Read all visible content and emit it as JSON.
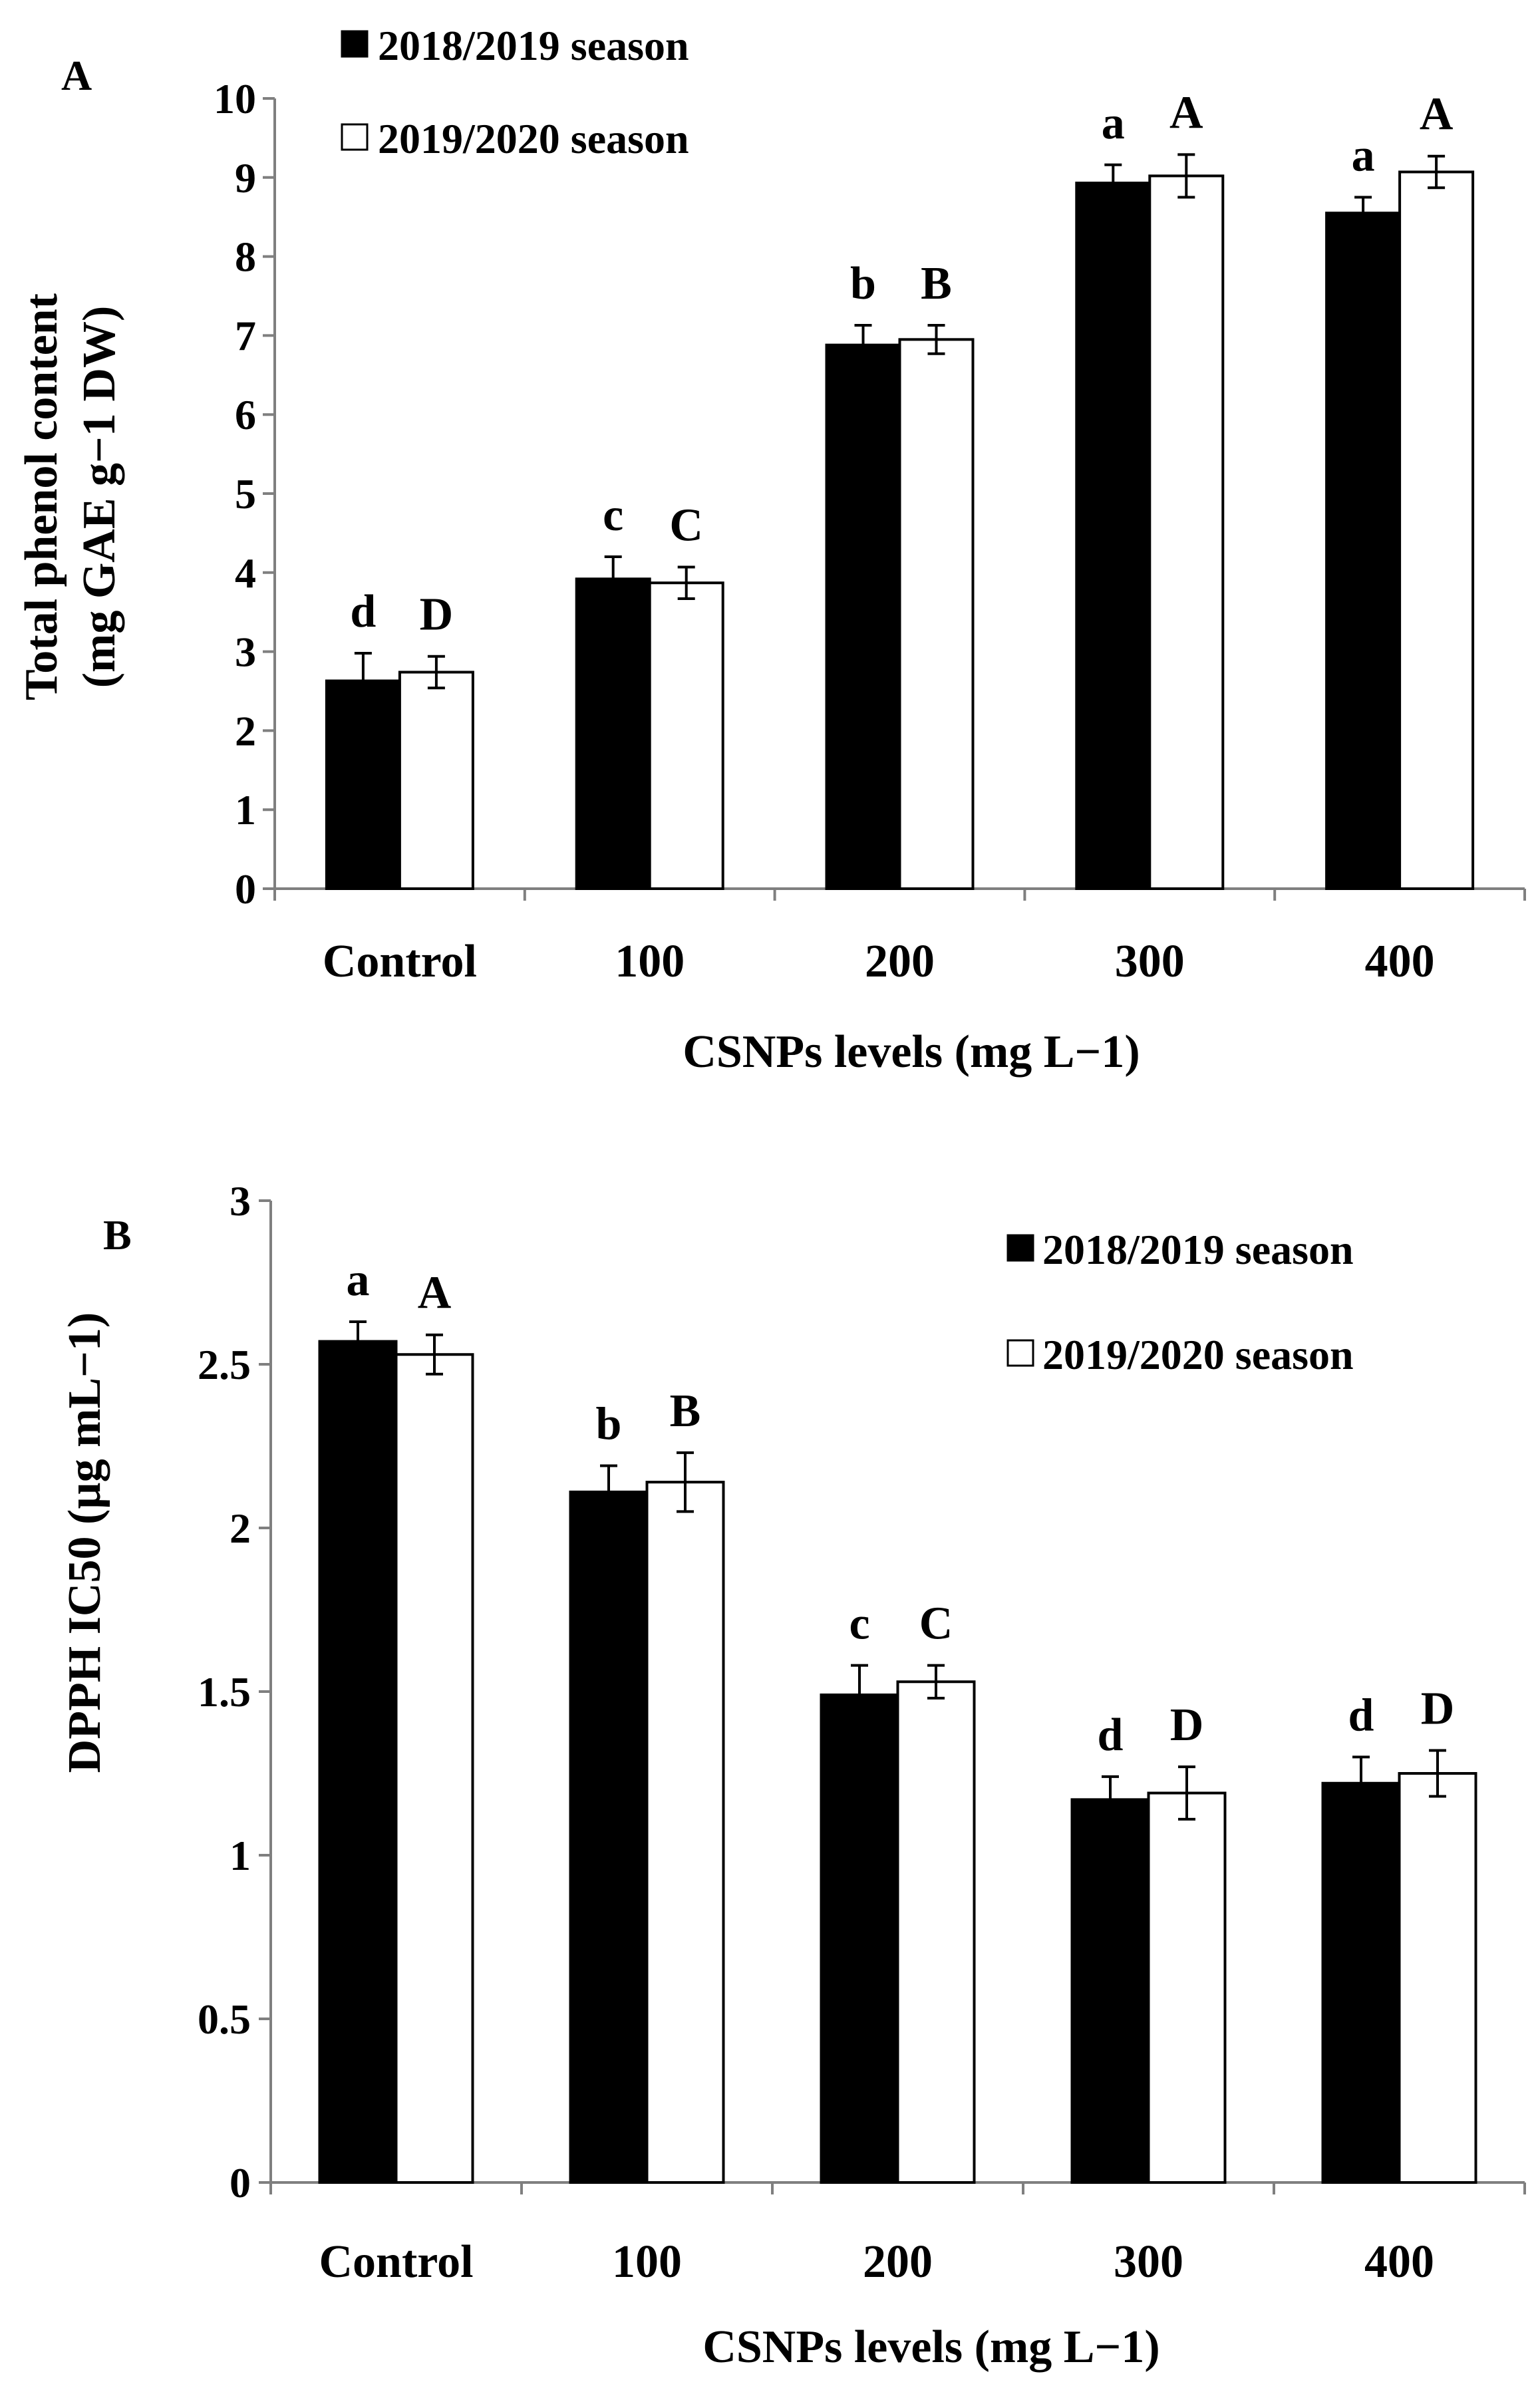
{
  "colors": {
    "series1": "#000000",
    "series2": "#ffffff",
    "axis": "#7f7f7f",
    "text": "#000000"
  },
  "chart_data": [
    {
      "panel": "A",
      "type": "bar",
      "xlabel": "CSNPs levels (mg L−1)",
      "ylabel_line1": "Total phenol content",
      "ylabel_line2": "(mg GAE g−1 DW)",
      "categories": [
        "Control",
        "100",
        "200",
        "300",
        "400"
      ],
      "ylim": [
        0,
        10
      ],
      "yticks": [
        0,
        1,
        2,
        3,
        4,
        5,
        6,
        7,
        8,
        9,
        10
      ],
      "ytick_labels": [
        "0",
        "1",
        "2",
        "3",
        "4",
        "5",
        "6",
        "7",
        "8",
        "9",
        "10"
      ],
      "legend_position": "top-left",
      "series": [
        {
          "name": "2018/2019 season",
          "values": [
            2.63,
            3.92,
            6.88,
            8.93,
            8.55
          ],
          "errors": [
            0.35,
            0.28,
            0.25,
            0.23,
            0.2
          ],
          "letters": [
            "d",
            "c",
            "b",
            "a",
            "a"
          ]
        },
        {
          "name": "2019/2020 season",
          "values": [
            2.74,
            3.87,
            6.95,
            9.02,
            9.07
          ],
          "errors": [
            0.2,
            0.2,
            0.18,
            0.27,
            0.2
          ],
          "letters": [
            "D",
            "C",
            "B",
            "A",
            "A"
          ]
        }
      ]
    },
    {
      "panel": "B",
      "type": "bar",
      "xlabel": "CSNPs levels (mg L−1)",
      "ylabel_line1": "DPPH IC50 (µg mL−1)",
      "categories": [
        "Control",
        "100",
        "200",
        "300",
        "400"
      ],
      "ylim": [
        0,
        3
      ],
      "yticks": [
        0,
        0.5,
        1,
        1.5,
        2,
        2.5,
        3
      ],
      "ytick_labels": [
        "0",
        "0.5",
        "1",
        "1.5",
        "2",
        "2.5",
        "3"
      ],
      "legend_position": "top-right",
      "series": [
        {
          "name": "2018/2019 season",
          "values": [
            2.57,
            2.11,
            1.49,
            1.17,
            1.22
          ],
          "errors": [
            0.06,
            0.08,
            0.09,
            0.07,
            0.08
          ],
          "letters": [
            "a",
            "b",
            "c",
            "d",
            "d"
          ]
        },
        {
          "name": "2019/2020 season",
          "values": [
            2.53,
            2.14,
            1.53,
            1.19,
            1.25
          ],
          "errors": [
            0.06,
            0.09,
            0.05,
            0.08,
            0.07
          ],
          "letters": [
            "A",
            "B",
            "C",
            "D",
            "D"
          ]
        }
      ]
    }
  ]
}
